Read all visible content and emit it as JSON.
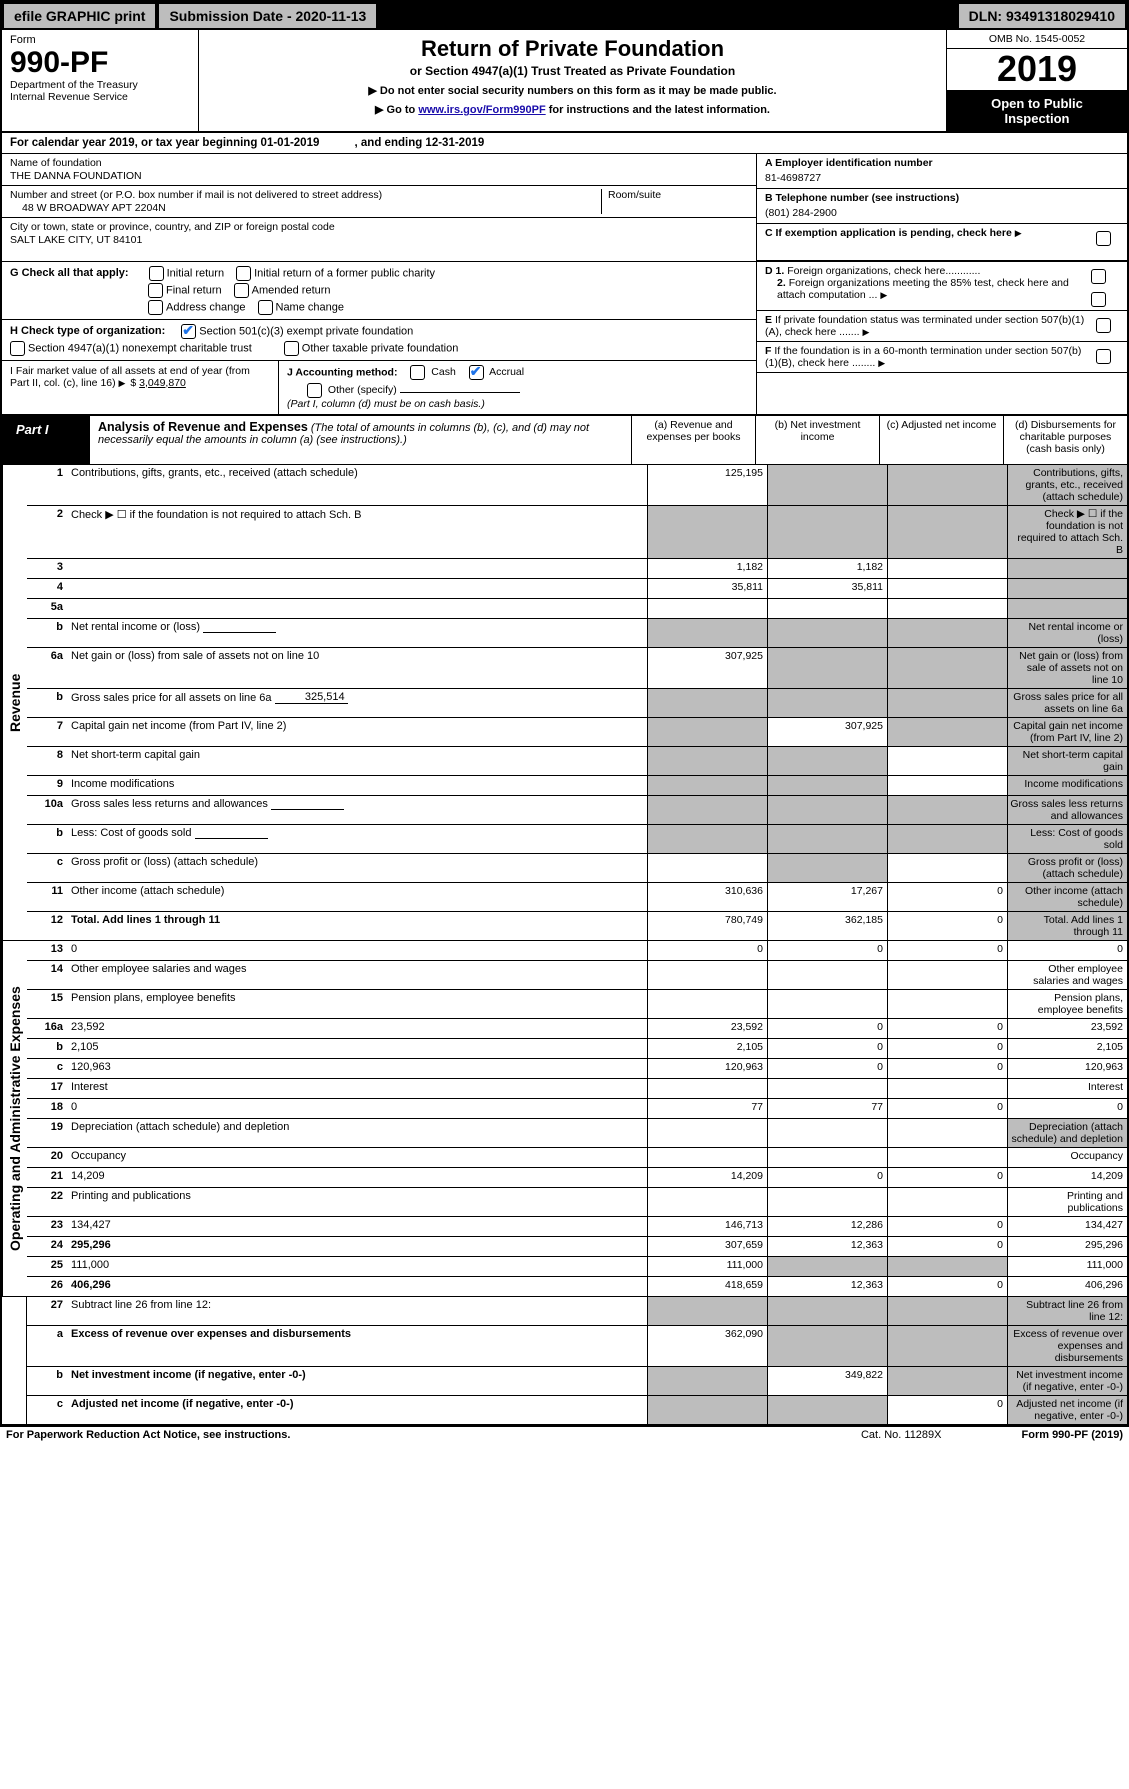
{
  "topbar": {
    "efile": "efile GRAPHIC print",
    "submission": "Submission Date - 2020-11-13",
    "dln": "DLN: 93491318029410"
  },
  "header": {
    "form_label": "Form",
    "form_number": "990-PF",
    "dept": "Department of the Treasury\nInternal Revenue Service",
    "title": "Return of Private Foundation",
    "subtitle": "or Section 4947(a)(1) Trust Treated as Private Foundation",
    "instr1": "▶ Do not enter social security numbers on this form as it may be made public.",
    "instr2_prefix": "▶ Go to ",
    "instr2_link": "www.irs.gov/Form990PF",
    "instr2_suffix": " for instructions and the latest information.",
    "omb": "OMB No. 1545-0052",
    "year": "2019",
    "open_pub": "Open to Public\nInspection"
  },
  "cal_year": "For calendar year 2019, or tax year beginning 01-01-2019           , and ending 12-31-2019",
  "foundation": {
    "name_label": "Name of foundation",
    "name": "THE DANNA FOUNDATION",
    "addr_label": "Number and street (or P.O. box number if mail is not delivered to street address)",
    "addr": "48 W BROADWAY APT 2204N",
    "room_label": "Room/suite",
    "city_label": "City or town, state or province, country, and ZIP or foreign postal code",
    "city": "SALT LAKE CITY, UT  84101"
  },
  "right_info": {
    "a_label": "A Employer identification number",
    "a_val": "81-4698727",
    "b_label": "B Telephone number (see instructions)",
    "b_val": "(801) 284-2900",
    "c_label": "C If exemption application is pending, check here",
    "d1": "D 1. Foreign organizations, check here............",
    "d2": "2. Foreign organizations meeting the 85% test, check here and attach computation ...",
    "e": "E  If private foundation status was terminated under section 507(b)(1)(A), check here .......",
    "f": "F  If the foundation is in a 60-month termination under section 507(b)(1)(B), check here ........"
  },
  "g": {
    "label": "G Check all that apply:",
    "opts": [
      "Initial return",
      "Initial return of a former public charity",
      "Final return",
      "Amended return",
      "Address change",
      "Name change"
    ]
  },
  "h": {
    "label": "H Check type of organization:",
    "opt1": "Section 501(c)(3) exempt private foundation",
    "opt2": "Section 4947(a)(1) nonexempt charitable trust",
    "opt3": "Other taxable private foundation"
  },
  "i": {
    "label": "I Fair market value of all assets at end of year (from Part II, col. (c), line 16)",
    "val": "3,049,870"
  },
  "j": {
    "label": "J Accounting method:",
    "cash": "Cash",
    "accrual": "Accrual",
    "other": "Other (specify)",
    "note": "(Part I, column (d) must be on cash basis.)"
  },
  "part1": {
    "badge": "Part I",
    "title": "Analysis of Revenue and Expenses",
    "title_note": "(The total of amounts in columns (b), (c), and (d) may not necessarily equal the amounts in column (a) (see instructions).)",
    "col_a": "(a)  Revenue and expenses per books",
    "col_b": "(b)  Net investment income",
    "col_c": "(c)  Adjusted net income",
    "col_d": "(d)  Disbursements for charitable purposes (cash basis only)"
  },
  "side1": "Revenue",
  "side2": "Operating and Administrative Expenses",
  "rows": {
    "r1": {
      "n": "1",
      "d": "Contributions, gifts, grants, etc., received (attach schedule)",
      "a": "125,195",
      "b": "",
      "shade": [
        "b",
        "c",
        "d"
      ]
    },
    "r2": {
      "n": "2",
      "d": "Check ▶ ☐ if the foundation is not required to attach Sch. B",
      "a": "",
      "shade": [
        "a",
        "b",
        "c",
        "d"
      ]
    },
    "r3": {
      "n": "3",
      "d": "",
      "a": "1,182",
      "b": "1,182",
      "c": "",
      "shade": [
        "d"
      ]
    },
    "r4": {
      "n": "4",
      "d": "",
      "a": "35,811",
      "b": "35,811",
      "c": "",
      "shade": [
        "d"
      ]
    },
    "r5a": {
      "n": "5a",
      "d": "",
      "a": "",
      "b": "",
      "c": "",
      "shade": [
        "d"
      ]
    },
    "r5b": {
      "n": "b",
      "d": "Net rental income or (loss)",
      "inline": "",
      "shade": [
        "a",
        "b",
        "c",
        "d"
      ]
    },
    "r6a": {
      "n": "6a",
      "d": "Net gain or (loss) from sale of assets not on line 10",
      "a": "307,925",
      "shade": [
        "b",
        "c",
        "d"
      ]
    },
    "r6b": {
      "n": "b",
      "d": "Gross sales price for all assets on line 6a",
      "inline": "325,514",
      "shade": [
        "a",
        "b",
        "c",
        "d"
      ]
    },
    "r7": {
      "n": "7",
      "d": "Capital gain net income (from Part IV, line 2)",
      "a": "",
      "b": "307,925",
      "shade": [
        "a",
        "c",
        "d"
      ]
    },
    "r8": {
      "n": "8",
      "d": "Net short-term capital gain",
      "shade": [
        "a",
        "b",
        "d"
      ]
    },
    "r9": {
      "n": "9",
      "d": "Income modifications",
      "shade": [
        "a",
        "b",
        "d"
      ]
    },
    "r10a": {
      "n": "10a",
      "d": "Gross sales less returns and allowances",
      "inline": "",
      "shade": [
        "a",
        "b",
        "c",
        "d"
      ]
    },
    "r10b": {
      "n": "b",
      "d": "Less: Cost of goods sold",
      "inline": "",
      "shade": [
        "a",
        "b",
        "c",
        "d"
      ]
    },
    "r10c": {
      "n": "c",
      "d": "Gross profit or (loss) (attach schedule)",
      "shade": [
        "b",
        "d"
      ]
    },
    "r11": {
      "n": "11",
      "d": "Other income (attach schedule)",
      "a": "310,636",
      "b": "17,267",
      "c": "0",
      "shade": [
        "d"
      ]
    },
    "r12": {
      "n": "12",
      "d": "Total. Add lines 1 through 11",
      "a": "780,749",
      "b": "362,185",
      "c": "0",
      "shade": [
        "d"
      ],
      "bold": true
    },
    "r13": {
      "n": "13",
      "d": "0",
      "a": "0",
      "b": "0",
      "c": "0"
    },
    "r14": {
      "n": "14",
      "d": "Other employee salaries and wages"
    },
    "r15": {
      "n": "15",
      "d": "Pension plans, employee benefits"
    },
    "r16a": {
      "n": "16a",
      "d": "23,592",
      "a": "23,592",
      "b": "0",
      "c": "0"
    },
    "r16b": {
      "n": "b",
      "d": "2,105",
      "a": "2,105",
      "b": "0",
      "c": "0"
    },
    "r16c": {
      "n": "c",
      "d": "120,963",
      "a": "120,963",
      "b": "0",
      "c": "0"
    },
    "r17": {
      "n": "17",
      "d": "Interest"
    },
    "r18": {
      "n": "18",
      "d": "0",
      "a": "77",
      "b": "77",
      "c": "0"
    },
    "r19": {
      "n": "19",
      "d": "Depreciation (attach schedule) and depletion",
      "shade": [
        "d"
      ]
    },
    "r20": {
      "n": "20",
      "d": "Occupancy"
    },
    "r21": {
      "n": "21",
      "d": "14,209",
      "a": "14,209",
      "b": "0",
      "c": "0"
    },
    "r22": {
      "n": "22",
      "d": "Printing and publications"
    },
    "r23": {
      "n": "23",
      "d": "134,427",
      "a": "146,713",
      "b": "12,286",
      "c": "0"
    },
    "r24": {
      "n": "24",
      "d": "295,296",
      "a": "307,659",
      "b": "12,363",
      "c": "0",
      "bold": true
    },
    "r25": {
      "n": "25",
      "d": "111,000",
      "a": "111,000",
      "shade": [
        "b",
        "c"
      ]
    },
    "r26": {
      "n": "26",
      "d": "406,296",
      "a": "418,659",
      "b": "12,363",
      "c": "0",
      "bold": true
    },
    "r27": {
      "n": "27",
      "d": "Subtract line 26 from line 12:",
      "shade": [
        "a",
        "b",
        "c",
        "d"
      ]
    },
    "r27a": {
      "n": "a",
      "d": "Excess of revenue over expenses and disbursements",
      "a": "362,090",
      "shade": [
        "b",
        "c",
        "d"
      ],
      "bold": true
    },
    "r27b": {
      "n": "b",
      "d": "Net investment income (if negative, enter -0-)",
      "b": "349,822",
      "shade": [
        "a",
        "c",
        "d"
      ],
      "bold": true
    },
    "r27c": {
      "n": "c",
      "d": "Adjusted net income (if negative, enter -0-)",
      "c": "0",
      "shade": [
        "a",
        "b",
        "d"
      ],
      "bold": true
    }
  },
  "footer": {
    "left": "For Paperwork Reduction Act Notice, see instructions.",
    "mid": "Cat. No. 11289X",
    "right": "Form 990-PF (2019)"
  }
}
